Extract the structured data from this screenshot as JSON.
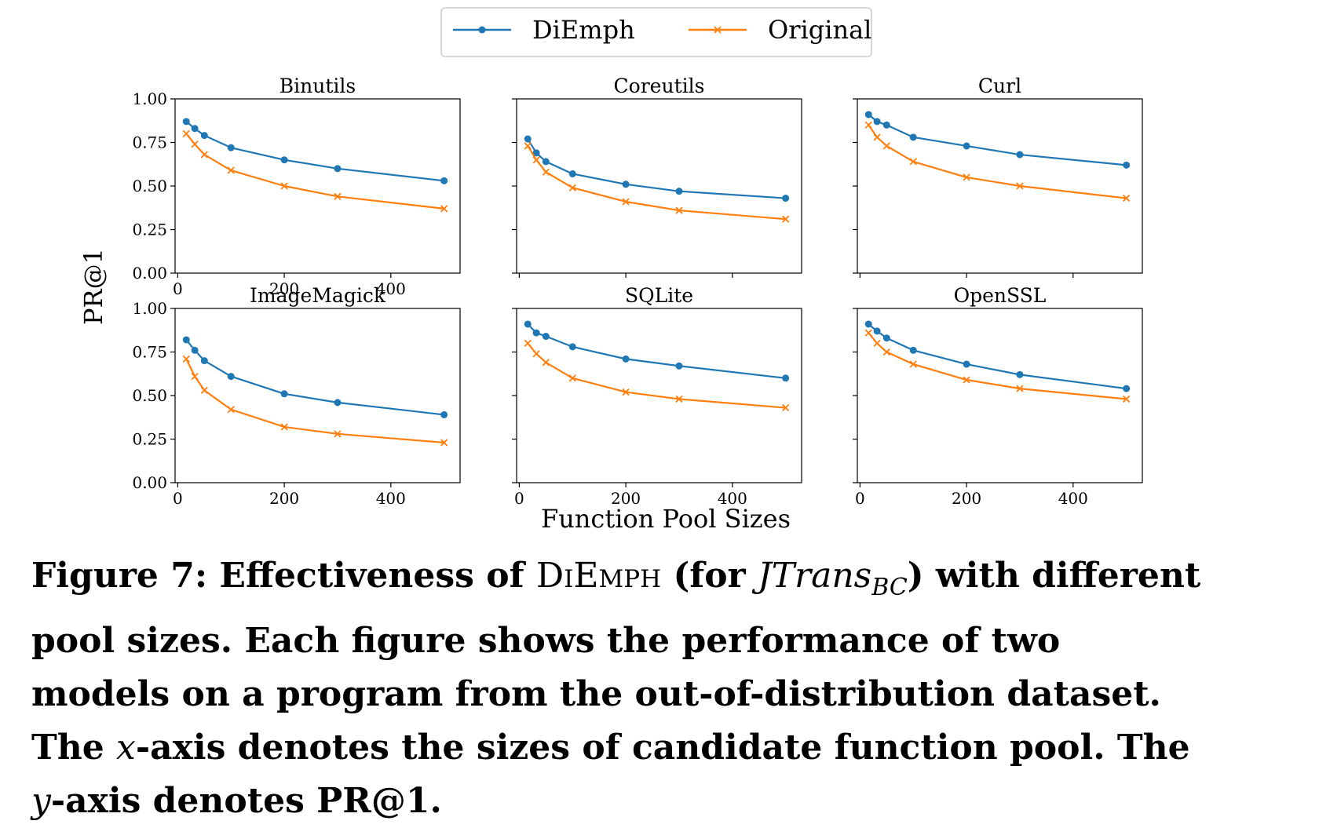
{
  "legend": {
    "entries": [
      {
        "label": "DiEmph",
        "color": "#1f77b4",
        "marker": "circle"
      },
      {
        "label": "Original",
        "color": "#ff7f0e",
        "marker": "x"
      }
    ]
  },
  "figure": {
    "ylabel": "PR@1",
    "xlabel": "Function Pool Sizes"
  },
  "chart_data": [
    {
      "type": "line",
      "title": "Binutils",
      "x": [
        16,
        32,
        50,
        100,
        200,
        300,
        500
      ],
      "xlim": [
        -5,
        530
      ],
      "ylim": [
        0,
        1
      ],
      "xticks": [
        "0",
        "200",
        "400"
      ],
      "yticks": [
        "0.00",
        "0.25",
        "0.50",
        "0.75",
        "1.00"
      ],
      "series": [
        {
          "name": "DiEmph",
          "values": [
            0.87,
            0.83,
            0.79,
            0.72,
            0.65,
            0.6,
            0.53
          ]
        },
        {
          "name": "Original",
          "values": [
            0.8,
            0.74,
            0.68,
            0.59,
            0.5,
            0.44,
            0.37
          ]
        }
      ]
    },
    {
      "type": "line",
      "title": "Coreutils",
      "x": [
        16,
        32,
        50,
        100,
        200,
        300,
        500
      ],
      "xlim": [
        -5,
        530
      ],
      "ylim": [
        0,
        1
      ],
      "xticks": [],
      "yticks": [],
      "series": [
        {
          "name": "DiEmph",
          "values": [
            0.77,
            0.69,
            0.64,
            0.57,
            0.51,
            0.47,
            0.43
          ]
        },
        {
          "name": "Original",
          "values": [
            0.73,
            0.65,
            0.58,
            0.49,
            0.41,
            0.36,
            0.31
          ]
        }
      ]
    },
    {
      "type": "line",
      "title": "Curl",
      "x": [
        16,
        32,
        50,
        100,
        200,
        300,
        500
      ],
      "xlim": [
        -5,
        530
      ],
      "ylim": [
        0,
        1
      ],
      "xticks": [],
      "yticks": [],
      "series": [
        {
          "name": "DiEmph",
          "values": [
            0.91,
            0.87,
            0.85,
            0.78,
            0.73,
            0.68,
            0.62
          ]
        },
        {
          "name": "Original",
          "values": [
            0.85,
            0.78,
            0.73,
            0.64,
            0.55,
            0.5,
            0.43
          ]
        }
      ]
    },
    {
      "type": "line",
      "title": "ImageMagick",
      "x": [
        16,
        32,
        50,
        100,
        200,
        300,
        500
      ],
      "xlim": [
        -5,
        530
      ],
      "ylim": [
        0,
        1
      ],
      "xticks": [
        "0",
        "200",
        "400"
      ],
      "yticks": [
        "0.00",
        "0.25",
        "0.50",
        "0.75",
        "1.00"
      ],
      "series": [
        {
          "name": "DiEmph",
          "values": [
            0.82,
            0.76,
            0.7,
            0.61,
            0.51,
            0.46,
            0.39
          ]
        },
        {
          "name": "Original",
          "values": [
            0.71,
            0.61,
            0.53,
            0.42,
            0.32,
            0.28,
            0.23
          ]
        }
      ]
    },
    {
      "type": "line",
      "title": "SQLite",
      "x": [
        16,
        32,
        50,
        100,
        200,
        300,
        500
      ],
      "xlim": [
        -5,
        530
      ],
      "ylim": [
        0,
        1
      ],
      "xticks": [
        "0",
        "200",
        "400"
      ],
      "yticks": [],
      "series": [
        {
          "name": "DiEmph",
          "values": [
            0.91,
            0.86,
            0.84,
            0.78,
            0.71,
            0.67,
            0.6
          ]
        },
        {
          "name": "Original",
          "values": [
            0.8,
            0.74,
            0.69,
            0.6,
            0.52,
            0.48,
            0.43
          ]
        }
      ]
    },
    {
      "type": "line",
      "title": "OpenSSL",
      "x": [
        16,
        32,
        50,
        100,
        200,
        300,
        500
      ],
      "xlim": [
        -5,
        530
      ],
      "ylim": [
        0,
        1
      ],
      "xticks": [
        "0",
        "200",
        "400"
      ],
      "yticks": [],
      "series": [
        {
          "name": "DiEmph",
          "values": [
            0.91,
            0.87,
            0.83,
            0.76,
            0.68,
            0.62,
            0.54
          ]
        },
        {
          "name": "Original",
          "values": [
            0.86,
            0.8,
            0.75,
            0.68,
            0.59,
            0.54,
            0.48
          ]
        }
      ]
    }
  ],
  "caption": {
    "t1": "Figure 7: Effectiveness of ",
    "t2": "DiEmph",
    "t3": " (for ",
    "t4": "JTrans",
    "t5": "BC",
    "t6": ") with different pool sizes. Each figure shows the performance of two models on a program from the out-of-distribution dataset. The ",
    "t7": "x",
    "t8": "-axis denotes the sizes of candidate function pool. The ",
    "t9": "y",
    "t10": "-axis denotes PR@1."
  }
}
